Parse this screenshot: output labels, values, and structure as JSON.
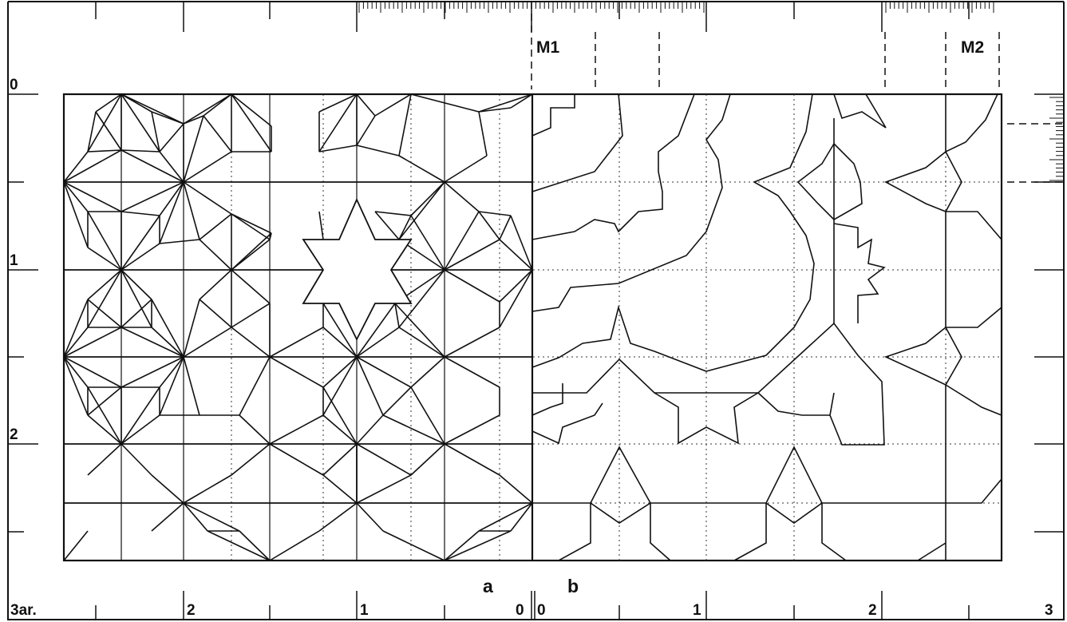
{
  "labels": {
    "left_zero": "0",
    "left_one": "1",
    "left_two": "2",
    "bottom_left": "3ar.",
    "bottom_two": "2",
    "bottom_one": "1",
    "bottom_zero_a": "0",
    "bottom_zero_b": "0",
    "bottom_one_b": "1",
    "bottom_two_b": "2",
    "bottom_three_b": "3",
    "panel_a": "a",
    "panel_b": "b",
    "marker_m1": "M1",
    "marker_m2": "M2"
  }
}
